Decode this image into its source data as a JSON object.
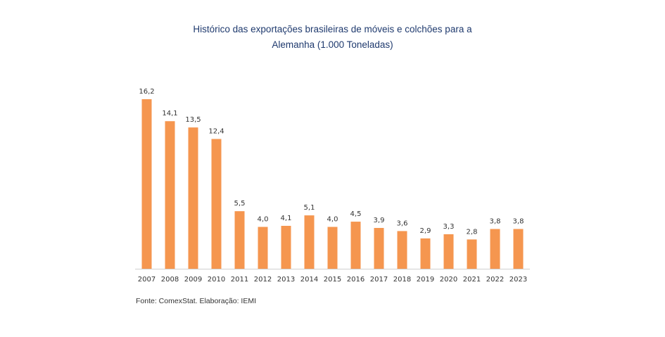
{
  "chart_data": {
    "type": "bar",
    "title_line1": "Histórico das exportações brasileiras de móveis e colchões para a",
    "title_line2": "Alemanha (1.000 Toneladas)",
    "categories": [
      "2007",
      "2008",
      "2009",
      "2010",
      "2011",
      "2012",
      "2013",
      "2014",
      "2015",
      "2016",
      "2017",
      "2018",
      "2019",
      "2020",
      "2021",
      "2022",
      "2023"
    ],
    "values": [
      16.2,
      14.1,
      13.5,
      12.4,
      5.5,
      4.0,
      4.1,
      5.1,
      4.0,
      4.5,
      3.9,
      3.6,
      2.9,
      3.3,
      2.8,
      3.8,
      3.8
    ],
    "value_labels": [
      "16,2",
      "14,1",
      "13,5",
      "12,4",
      "5,5",
      "4,0",
      "4,1",
      "5,1",
      "4,0",
      "4,5",
      "3,9",
      "3,6",
      "2,9",
      "3,3",
      "2,8",
      "3,8",
      "3,8"
    ],
    "bar_color": "#f5964f",
    "ylim": [
      0,
      16.2
    ],
    "grid": false
  },
  "source": "Fonte: ComexStat. Elaboração: IEMI"
}
